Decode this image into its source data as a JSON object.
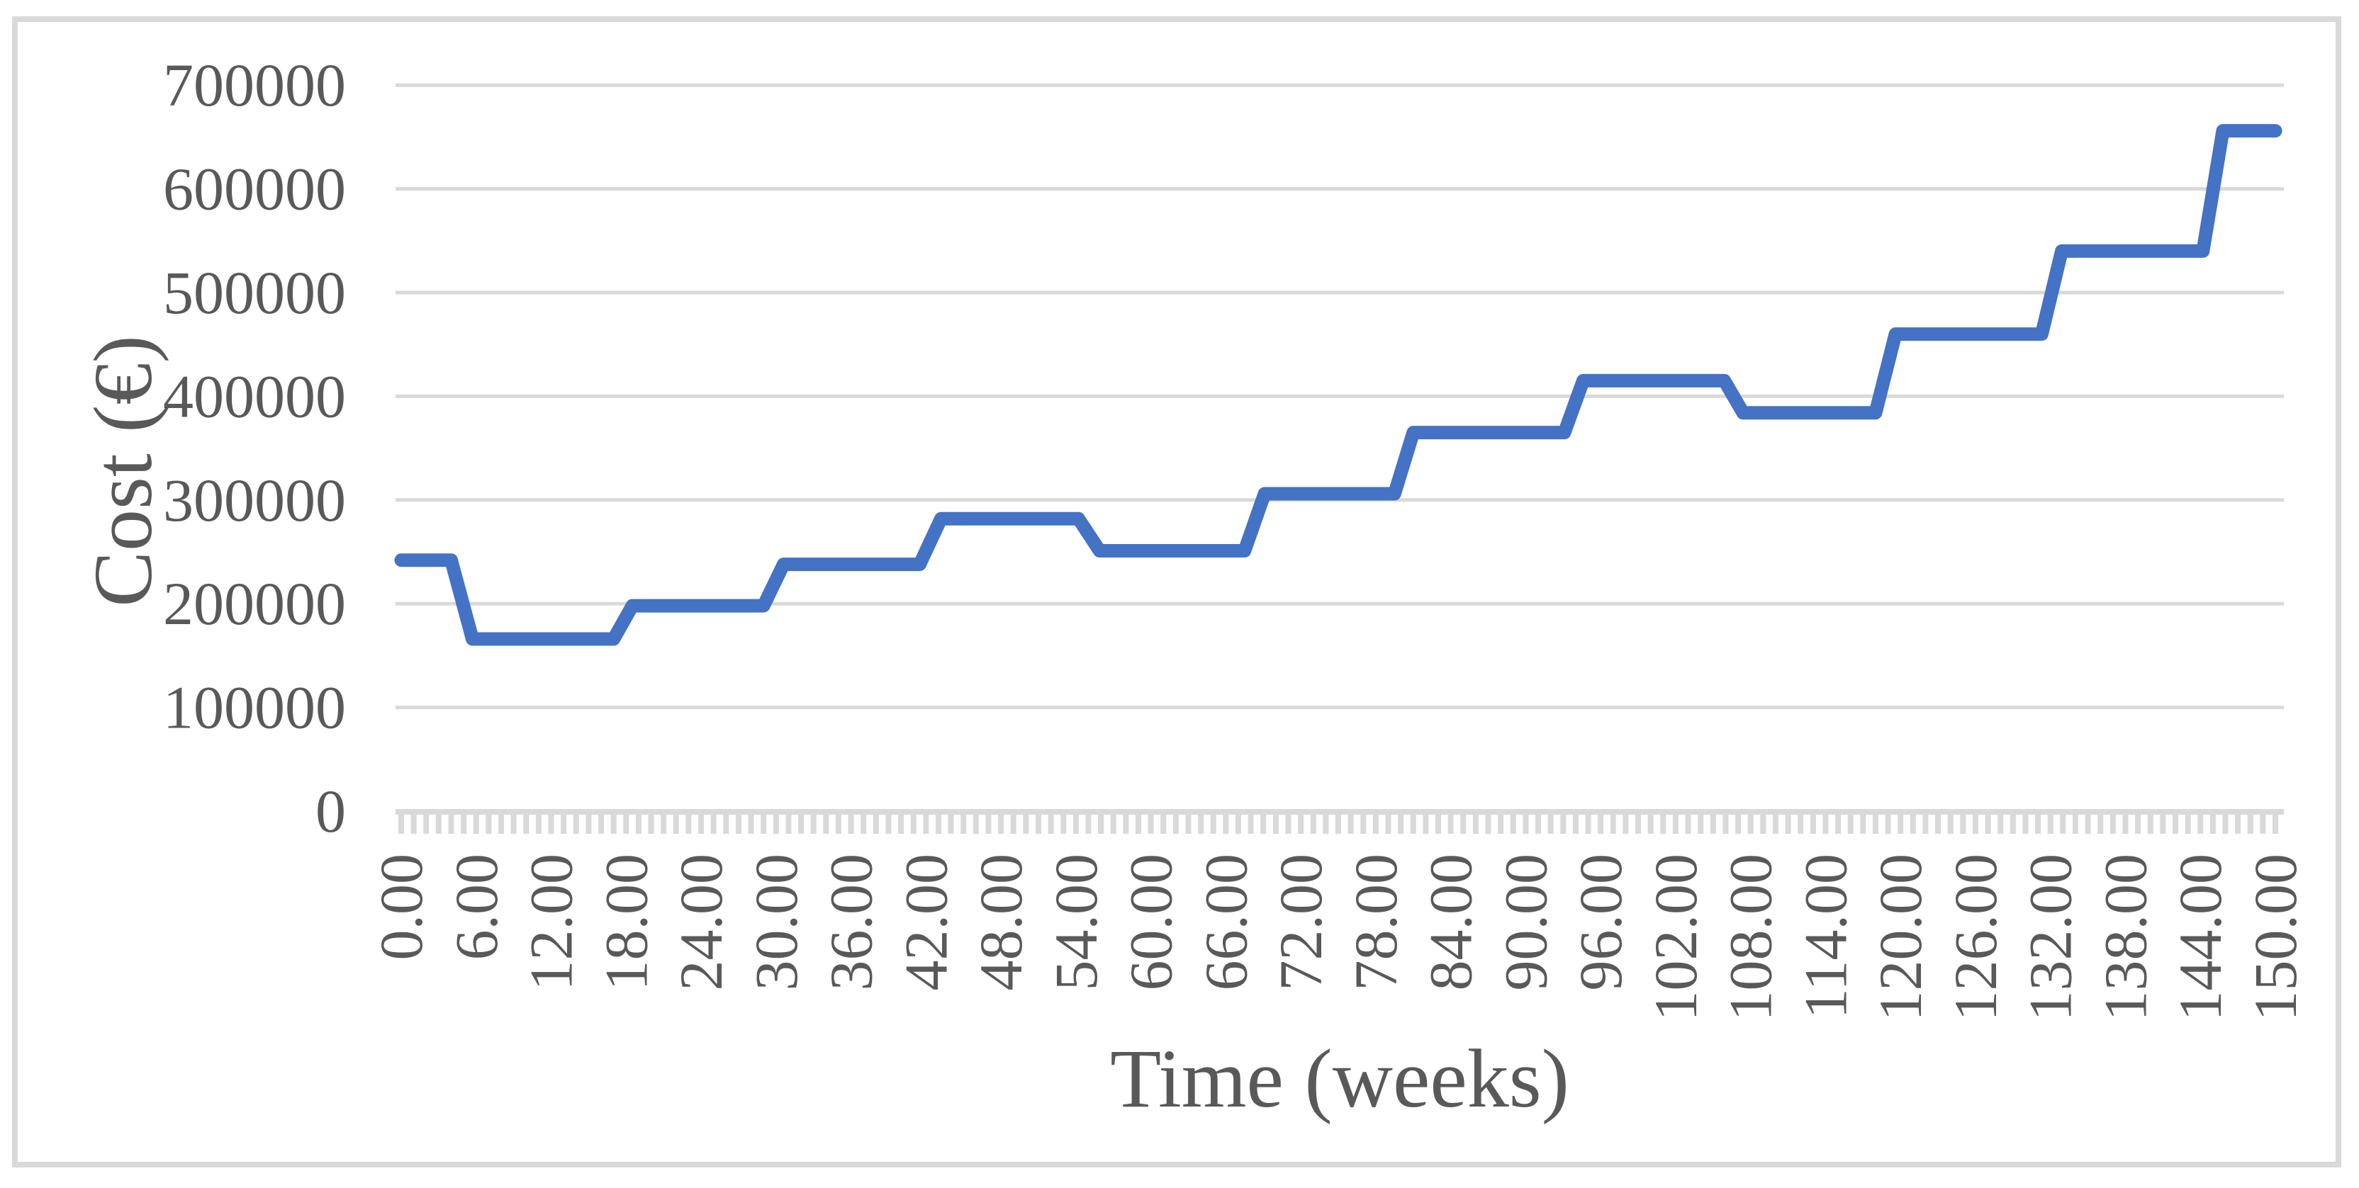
{
  "figure": {
    "description": "Step line chart of cumulative maintenance cost over time",
    "border_color": "#d9d9d9",
    "background": "#ffffff"
  },
  "chart_data": {
    "type": "line",
    "title": "",
    "xlabel": "Time (weeks)",
    "ylabel": "Cost (€)",
    "xlim": [
      0,
      150
    ],
    "ylim": [
      0,
      700000
    ],
    "grid": "horizontal",
    "legend": "none",
    "line_color": "#4472c4",
    "grid_color": "#d9d9d9",
    "axis_color": "#d9d9d9",
    "text_color": "#595959",
    "y_ticks": [
      0,
      100000,
      200000,
      300000,
      400000,
      500000,
      600000,
      700000
    ],
    "y_tick_labels": [
      "0",
      "100000",
      "200000",
      "300000",
      "400000",
      "500000",
      "600000",
      "700000"
    ],
    "x_major_tick_interval": 6,
    "x_minor_tick_interval": 1,
    "x_tick_labels": [
      "0.00",
      "6.00",
      "12.00",
      "18.00",
      "24.00",
      "30.00",
      "36.00",
      "42.00",
      "48.00",
      "54.00",
      "60.00",
      "66.00",
      "72.00",
      "78.00",
      "84.00",
      "90.00",
      "96.00",
      "102.00",
      "108.00",
      "114.00",
      "120.00",
      "126.00",
      "132.00",
      "138.00",
      "144.00",
      "150.00"
    ],
    "series": [
      {
        "name": "Cost",
        "color": "#4472c4",
        "points": [
          [
            0,
            242000
          ],
          [
            4,
            242000
          ],
          [
            5.7,
            166000
          ],
          [
            17,
            166000
          ],
          [
            18.5,
            198000
          ],
          [
            29,
            198000
          ],
          [
            30.6,
            238000
          ],
          [
            41.5,
            238000
          ],
          [
            43.2,
            282000
          ],
          [
            54.2,
            282000
          ],
          [
            55.9,
            251000
          ],
          [
            67.5,
            251000
          ],
          [
            69.1,
            306000
          ],
          [
            79.5,
            306000
          ],
          [
            81,
            365000
          ],
          [
            93.1,
            365000
          ],
          [
            94.6,
            415000
          ],
          [
            105.9,
            415000
          ],
          [
            107.4,
            384000
          ],
          [
            118,
            384000
          ],
          [
            119.6,
            460000
          ],
          [
            131.3,
            460000
          ],
          [
            132.9,
            540000
          ],
          [
            144.2,
            540000
          ],
          [
            145.8,
            656000
          ],
          [
            150,
            656000
          ]
        ]
      }
    ]
  }
}
